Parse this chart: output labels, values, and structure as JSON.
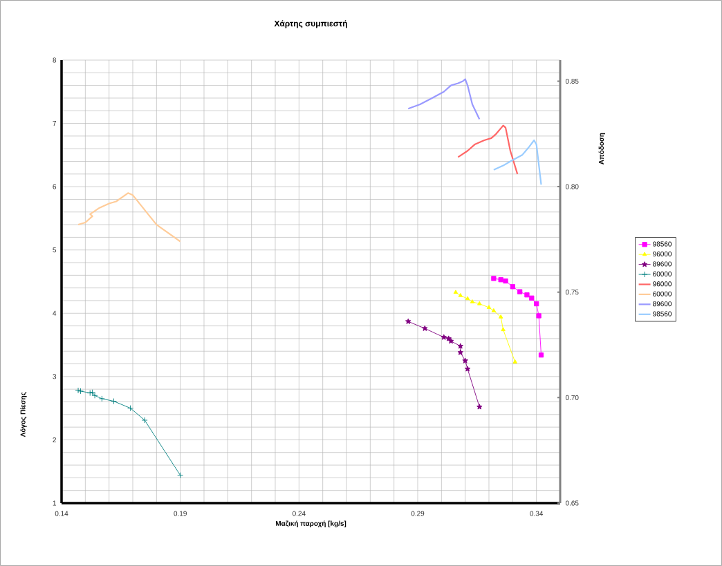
{
  "chart_data": {
    "type": "line",
    "title": "Χάρτης συμπιεστή",
    "xlabel": "Μαζική παροχή [kg/s]",
    "ylabel": "Λόγος Πίεσης",
    "y2label": "Απόδοση",
    "xlim": [
      0.14,
      0.35
    ],
    "xticks": [
      0.14,
      0.19,
      0.24,
      0.29,
      0.34
    ],
    "ylim": [
      1,
      8
    ],
    "yticks": [
      1,
      2,
      3,
      4,
      5,
      6,
      7,
      8
    ],
    "y2lim": [
      0.65,
      0.86
    ],
    "y2ticks": [
      0.65,
      {
        "value": 0.7,
        "label": "0.70"
      },
      0.75,
      {
        "value": 0.8,
        "label": "0.80"
      },
      0.85
    ],
    "grid": true,
    "legend": "right",
    "series": [
      {
        "name": "98560",
        "color": "#ff00ff",
        "marker": "square",
        "x": [
          0.322,
          0.325,
          0.327,
          0.33,
          0.333,
          0.336,
          0.338,
          0.34,
          0.341,
          0.342
        ],
        "values": [
          4.55,
          4.53,
          4.51,
          4.42,
          4.34,
          4.29,
          4.24,
          4.15,
          3.96,
          3.34
        ]
      },
      {
        "name": "96000",
        "color": "#ffff00",
        "marker": "triangle",
        "x": [
          0.306,
          0.308,
          0.311,
          0.313,
          0.316,
          0.32,
          0.322,
          0.325,
          0.326,
          0.331
        ],
        "values": [
          4.33,
          4.28,
          4.23,
          4.18,
          4.15,
          4.09,
          4.04,
          3.94,
          3.74,
          3.23
        ]
      },
      {
        "name": "89600",
        "color": "#800080",
        "marker": "star",
        "x": [
          0.286,
          0.293,
          0.301,
          0.303,
          0.304,
          0.308,
          0.308,
          0.31,
          0.311,
          0.316
        ],
        "values": [
          3.87,
          3.76,
          3.62,
          3.6,
          3.56,
          3.48,
          3.38,
          3.25,
          3.12,
          2.52
        ]
      },
      {
        "name": "60000",
        "color": "#008080",
        "marker": "cross",
        "x": [
          0.147,
          0.148,
          0.152,
          0.153,
          0.154,
          0.157,
          0.162,
          0.169,
          0.175,
          0.19
        ],
        "values": [
          2.78,
          2.77,
          2.74,
          2.75,
          2.7,
          2.65,
          2.61,
          2.5,
          2.31,
          1.44
        ]
      },
      {
        "name": "96000",
        "color": "#ff6666",
        "marker": "none",
        "axis": "y2",
        "x": [
          0.307,
          0.311,
          0.314,
          0.318,
          0.321,
          0.323,
          0.326,
          0.327,
          0.329,
          0.332
        ],
        "values": [
          0.814,
          0.817,
          0.82,
          0.822,
          0.823,
          0.825,
          0.829,
          0.828,
          0.817,
          0.806
        ]
      },
      {
        "name": "60000",
        "color": "#ffcc99",
        "marker": "none",
        "axis": "y2",
        "x": [
          0.147,
          0.15,
          0.152,
          0.153,
          0.152,
          0.156,
          0.16,
          0.163,
          0.168,
          0.17,
          0.18,
          0.19
        ],
        "values": [
          0.782,
          0.783,
          0.785,
          0.786,
          0.787,
          0.79,
          0.792,
          0.793,
          0.797,
          0.796,
          0.782,
          0.774
        ]
      },
      {
        "name": "89600",
        "color": "#9999ff",
        "marker": "none",
        "axis": "y2",
        "x": [
          0.286,
          0.291,
          0.296,
          0.301,
          0.304,
          0.307,
          0.309,
          0.31,
          0.311,
          0.313,
          0.316
        ],
        "values": [
          0.837,
          0.839,
          0.842,
          0.845,
          0.848,
          0.849,
          0.85,
          0.851,
          0.848,
          0.839,
          0.832
        ]
      },
      {
        "name": "98560",
        "color": "#99ccff",
        "marker": "none",
        "axis": "y2",
        "x": [
          0.322,
          0.326,
          0.329,
          0.334,
          0.337,
          0.339,
          0.34,
          0.342
        ],
        "values": [
          0.808,
          0.81,
          0.812,
          0.815,
          0.819,
          0.822,
          0.82,
          0.801
        ]
      }
    ]
  }
}
